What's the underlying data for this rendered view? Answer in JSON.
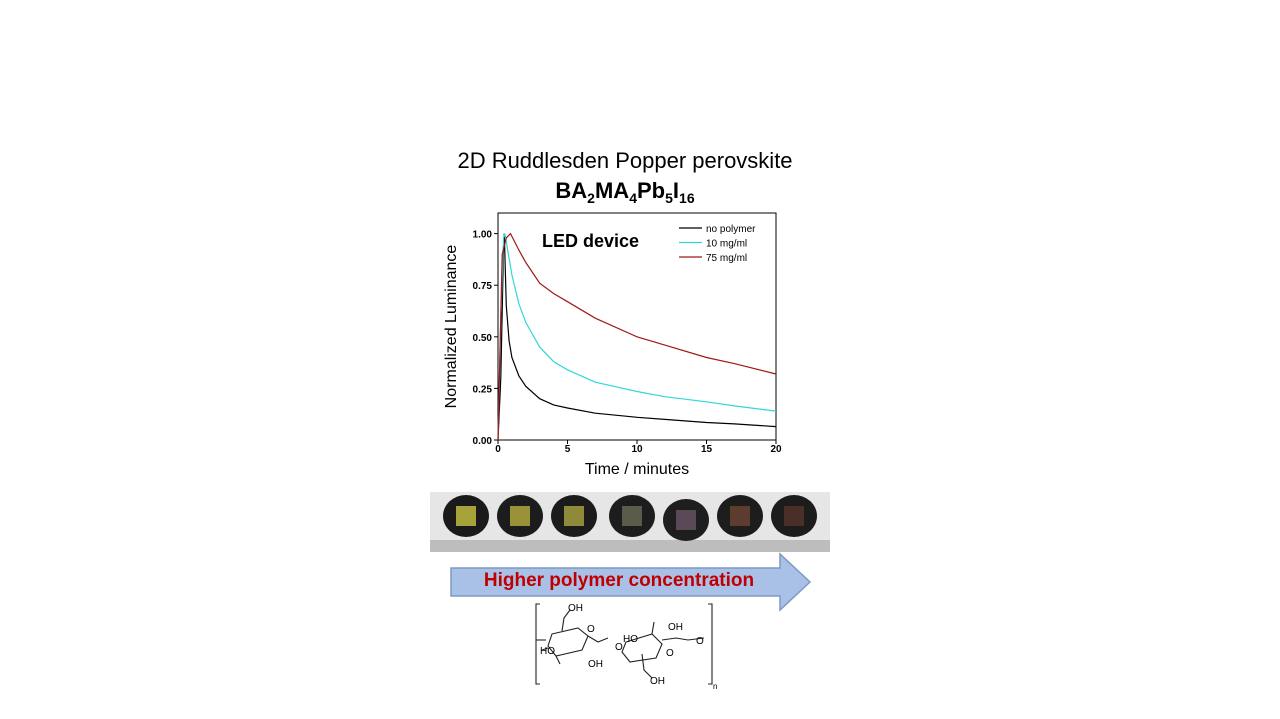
{
  "title_line1": "2D Ruddlesden Popper perovskite",
  "formula": {
    "p1": "BA",
    "s1": "2",
    "p2": "MA",
    "s2": "4",
    "p3": "Pb",
    "s3": "5",
    "p4": "I",
    "s4": "16"
  },
  "arrow_label": "Higher polymer concentration",
  "molecule": {
    "oh_top_left": "OH",
    "oh_left": "HO",
    "oh_bottom_left": "OH",
    "oh_mid": "HO",
    "oh_top_right": "OH",
    "oh_bottom": "OH",
    "o_link": "O",
    "o_ring1": "O",
    "o_ring2": "O",
    "o_end": "O",
    "o_start": "O",
    "subscript": "n"
  },
  "photo": {
    "samples": [
      {
        "disk": "#1a1a1a",
        "film": "#a7a23a"
      },
      {
        "disk": "#1c1c1c",
        "film": "#9a9238"
      },
      {
        "disk": "#1b1b1b",
        "film": "#8f8a3a"
      },
      {
        "disk": "#1d1d1d",
        "film": "#5b5b4a"
      },
      {
        "disk": "#1e1e1e",
        "film": "#5a4a58"
      },
      {
        "disk": "#1d1d1d",
        "film": "#5c3c2e"
      },
      {
        "disk": "#1c1c1c",
        "film": "#4a2e28"
      }
    ],
    "background": "#e6e6e6"
  },
  "chart_data": {
    "type": "line",
    "annotation": "LED device",
    "xlabel": "Time / minutes",
    "ylabel": "Normalized Luminance",
    "xlim": [
      0,
      20
    ],
    "ylim": [
      0,
      1.1
    ],
    "x_ticks": [
      0,
      5,
      10,
      15,
      20
    ],
    "x_tick_labels": [
      "0",
      "5",
      "10",
      "15",
      "20"
    ],
    "y_ticks": [
      0,
      0.25,
      0.5,
      0.75,
      1.0
    ],
    "y_tick_labels": [
      "0.00",
      "0.25",
      "0.50",
      "0.75",
      "1.00"
    ],
    "legend_position": "top-right",
    "series": [
      {
        "name": "no polymer",
        "color": "#000000",
        "x": [
          0,
          0.2,
          0.4,
          0.45,
          0.6,
          0.8,
          1,
          1.5,
          2,
          3,
          4,
          5,
          7,
          10,
          12,
          15,
          17,
          20
        ],
        "y": [
          0,
          0.3,
          0.95,
          1.0,
          0.65,
          0.48,
          0.4,
          0.31,
          0.26,
          0.2,
          0.17,
          0.155,
          0.13,
          0.11,
          0.1,
          0.085,
          0.078,
          0.065
        ]
      },
      {
        "name": "10 mg/ml",
        "color": "#33d6d6",
        "x": [
          0,
          0.2,
          0.4,
          0.5,
          0.7,
          1,
          1.5,
          2,
          3,
          4,
          5,
          7,
          10,
          12,
          15,
          17,
          20
        ],
        "y": [
          0,
          0.6,
          0.98,
          1.0,
          0.92,
          0.8,
          0.66,
          0.57,
          0.45,
          0.38,
          0.34,
          0.28,
          0.235,
          0.21,
          0.185,
          0.165,
          0.14
        ]
      },
      {
        "name": "75 mg/ml",
        "color": "#a01818",
        "x": [
          0,
          0.3,
          0.6,
          0.9,
          1.2,
          1.5,
          2,
          3,
          4,
          5,
          7,
          10,
          12,
          15,
          17,
          20
        ],
        "y": [
          0,
          0.9,
          0.98,
          1.0,
          0.96,
          0.92,
          0.86,
          0.76,
          0.71,
          0.67,
          0.59,
          0.5,
          0.46,
          0.4,
          0.37,
          0.32
        ]
      }
    ]
  }
}
